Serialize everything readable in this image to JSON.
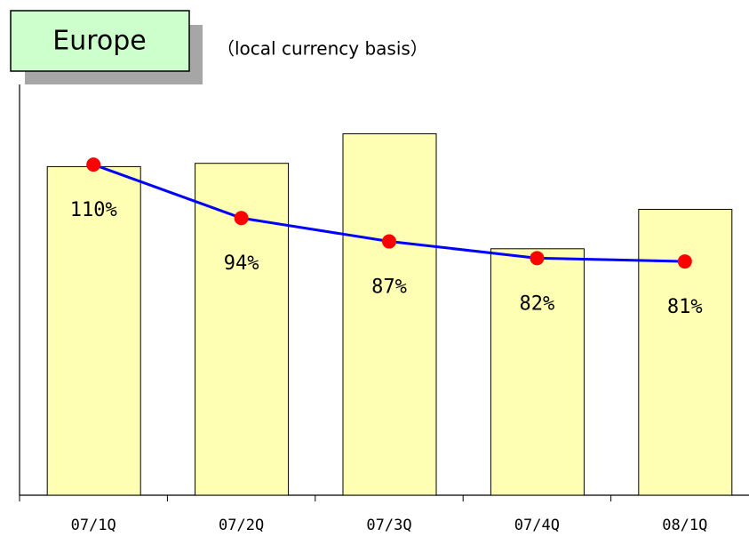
{
  "chart_data": {
    "type": "bar",
    "title": "Europe",
    "subtitle": "（local currency basis）",
    "categories": [
      "07/1Q",
      "07/2Q",
      "07/3Q",
      "07/4Q",
      "08/1Q"
    ],
    "ylim": [
      0,
      125
    ],
    "y2lim": [
      11,
      134
    ],
    "series": [
      {
        "type": "bar",
        "color": "#ffffb3",
        "values": [
          100,
          101,
          110,
          75,
          87
        ]
      },
      {
        "type": "line",
        "axis": "y2",
        "color": "#0000ff",
        "marker_color": "#ff0000",
        "values": [
          110,
          94,
          87,
          82,
          81
        ],
        "value_labels": [
          "110%",
          "94%",
          "87%",
          "82%",
          "81%"
        ]
      }
    ]
  }
}
